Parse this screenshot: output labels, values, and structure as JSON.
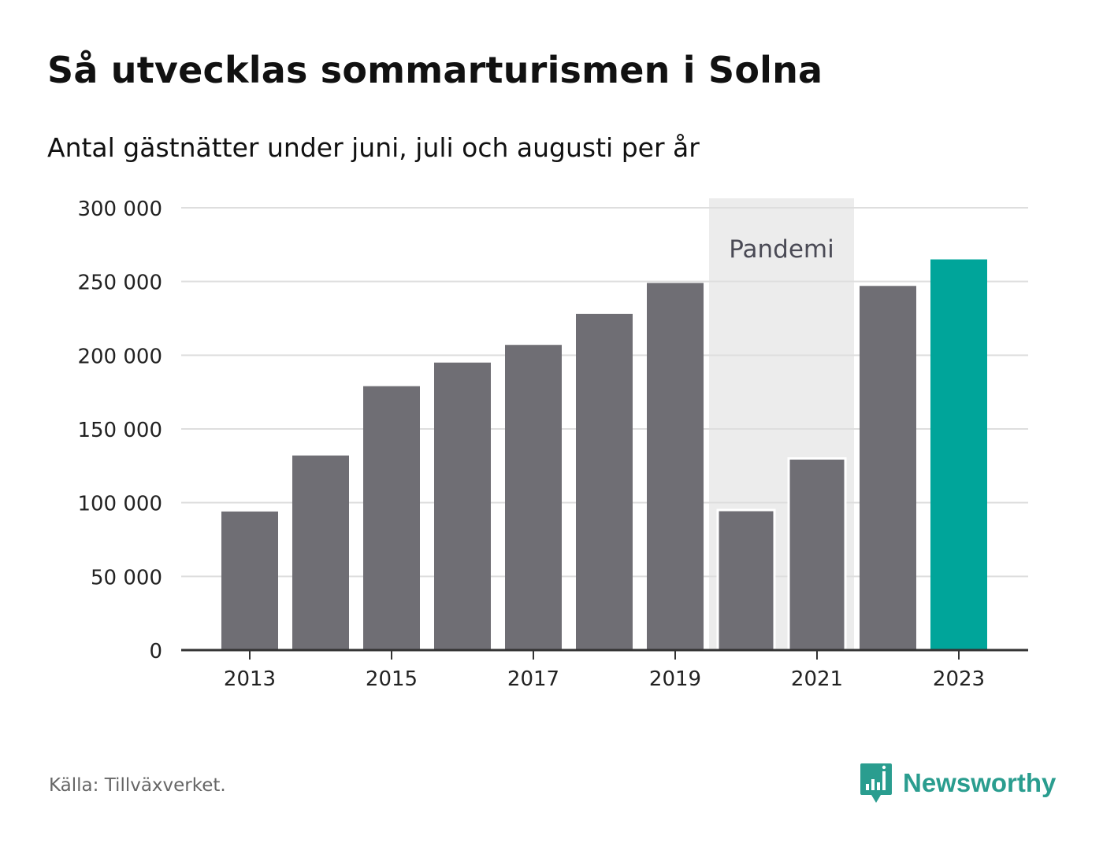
{
  "title": "Så utvecklas sommarturismen i Solna",
  "subtitle": "Antal gästnätter under juni, juli och augusti per år",
  "source": "Källa: Tillväxverket.",
  "brand": {
    "name": "Newsworthy",
    "color": "#2a9d8f",
    "icon": "bar-chart-speech-bubble-icon"
  },
  "colors": {
    "bar": "#6f6e74",
    "highlight": "#00a59a",
    "band": "#ececec",
    "grid": "#dedede",
    "axis": "#333333"
  },
  "chart_data": {
    "type": "bar",
    "categories": [
      "2013",
      "2014",
      "2015",
      "2016",
      "2017",
      "2018",
      "2019",
      "2020",
      "2021",
      "2022",
      "2023"
    ],
    "values": [
      94000,
      132000,
      179000,
      195000,
      207000,
      228000,
      249000,
      95000,
      130000,
      247000,
      265000
    ],
    "highlight_category": "2023",
    "x_tick_labels": [
      "2013",
      "2015",
      "2017",
      "2019",
      "2021",
      "2023"
    ],
    "y_ticks": [
      0,
      50000,
      100000,
      150000,
      200000,
      250000,
      300000
    ],
    "y_tick_labels": [
      "0",
      "50 000",
      "100 000",
      "150 000",
      "200 000",
      "250 000",
      "300 000"
    ],
    "ylim": [
      0,
      300000
    ],
    "grid": true,
    "annotation": {
      "label": "Pandemi",
      "categories": [
        "2020",
        "2021"
      ]
    }
  }
}
